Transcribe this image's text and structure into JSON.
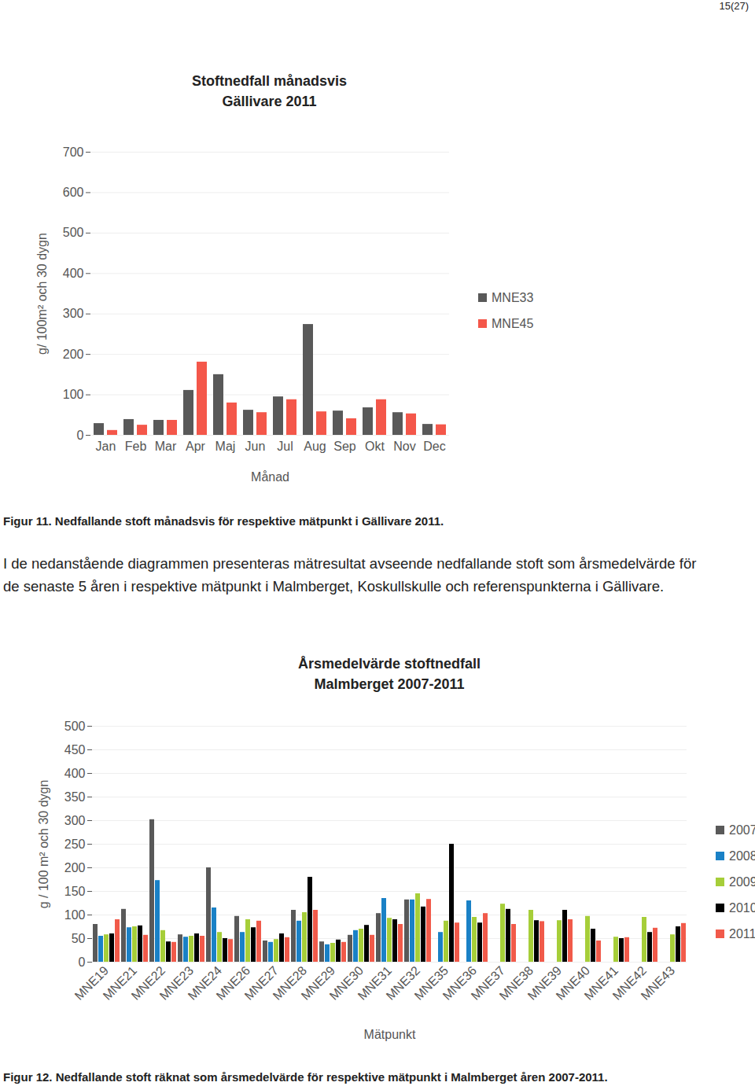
{
  "page_number": "15(27)",
  "paragraph": "I de nedanstående diagrammen presenteras mätresultat avseende nedfallande stoft som årsmedelvärde för de senaste 5 åren i respektive mätpunkt i Malmberget, Koskullskulle och referenspunkterna i Gällivare.",
  "chart_data": [
    {
      "type": "bar",
      "title": "Stoftnedfall månadsvis",
      "subtitle": "Gällivare 2011",
      "x_label": "Månad",
      "y_label": "g/ 100m² och 30 dygn",
      "caption": "Figur 11. Nedfallande stoft månadsvis för respektive mätpunkt i Gällivare 2011.",
      "categories": [
        "Jan",
        "Feb",
        "Mar",
        "Apr",
        "Maj",
        "Jun",
        "Jul",
        "Aug",
        "Sep",
        "Okt",
        "Nov",
        "Dec"
      ],
      "series": [
        {
          "name": "MNE33",
          "color": "#595959",
          "values": [
            29,
            39,
            37,
            111,
            150,
            62,
            95,
            274,
            60,
            68,
            56,
            27
          ]
        },
        {
          "name": "MNE45",
          "color": "#f4574a",
          "values": [
            12,
            25,
            37,
            181,
            80,
            56,
            88,
            58,
            41,
            88,
            53,
            26
          ]
        }
      ],
      "ylim": [
        0,
        700
      ],
      "yticks": [
        0,
        100,
        200,
        300,
        400,
        500,
        600,
        700
      ],
      "grid": true,
      "legend": "right"
    },
    {
      "type": "bar",
      "title": "Årsmedelvärde stoftnedfall",
      "subtitle": "Malmberget 2007-2011",
      "x_label": "Mätpunkt",
      "y_label": "g / 100 m² och 30 dygn",
      "caption": "Figur 12. Nedfallande stoft räknat som årsmedelvärde för respektive mätpunkt i Malmberget åren 2007-2011.",
      "categories": [
        "MNE19",
        "MNE21",
        "MNE22",
        "MNE23",
        "MNE24",
        "MNE26",
        "MNE27",
        "MNE28",
        "MNE29",
        "MNE30",
        "MNE31",
        "MNE32",
        "MNE35",
        "MNE36",
        "MNE37",
        "MNE38",
        "MNE39",
        "MNE40",
        "MNE41",
        "MNE42",
        "MNE43"
      ],
      "series": [
        {
          "name": "2007",
          "color": "#595959",
          "values": [
            80,
            112,
            302,
            58,
            200,
            97,
            45,
            110,
            43,
            57,
            103,
            132,
            null,
            null,
            null,
            null,
            null,
            null,
            null,
            null,
            null
          ]
        },
        {
          "name": "2008",
          "color": "#1a81c6",
          "values": [
            55,
            73,
            173,
            53,
            115,
            63,
            42,
            87,
            37,
            67,
            135,
            132,
            63,
            130,
            null,
            null,
            null,
            null,
            null,
            null,
            null
          ]
        },
        {
          "name": "2009",
          "color": "#a6ce39",
          "values": [
            58,
            75,
            67,
            55,
            63,
            90,
            48,
            105,
            40,
            70,
            93,
            145,
            87,
            95,
            123,
            110,
            88,
            97,
            53,
            95,
            58
          ]
        },
        {
          "name": "2010",
          "color": "#000000",
          "values": [
            60,
            77,
            43,
            60,
            50,
            73,
            60,
            180,
            47,
            78,
            90,
            117,
            250,
            83,
            112,
            88,
            110,
            70,
            50,
            63,
            75
          ]
        },
        {
          "name": "2011",
          "color": "#f15a4a",
          "values": [
            90,
            57,
            42,
            55,
            48,
            87,
            52,
            110,
            42,
            57,
            80,
            133,
            83,
            103,
            80,
            86,
            90,
            45,
            52,
            72,
            82
          ]
        }
      ],
      "ylim": [
        0,
        500
      ],
      "yticks": [
        0,
        50,
        100,
        150,
        200,
        250,
        300,
        350,
        400,
        450,
        500
      ],
      "grid": true,
      "legend": "right"
    }
  ]
}
